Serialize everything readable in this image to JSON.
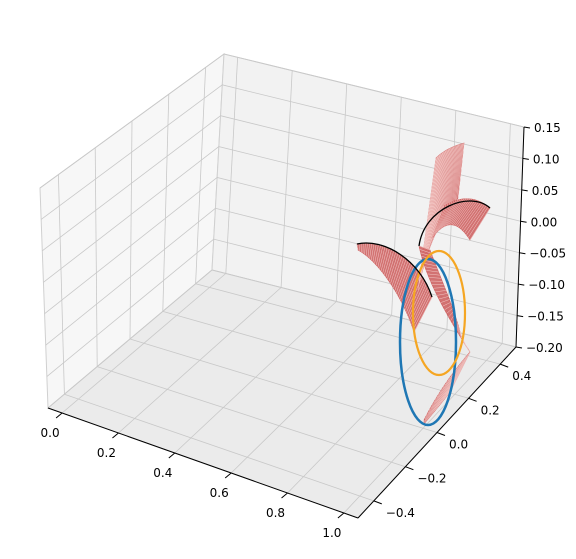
{
  "chart_data": {
    "type": "3d-line-surface",
    "title": "",
    "xlabel": "",
    "ylabel": "",
    "zlabel": "",
    "axes": {
      "x": {
        "ticks": [
          0.0,
          0.2,
          0.4,
          0.6,
          0.8,
          1.0
        ],
        "tick_labels": [
          "0.0",
          "0.2",
          "0.4",
          "0.6",
          "0.8",
          "1.0"
        ],
        "range": [
          -0.05,
          1.05
        ]
      },
      "y": {
        "ticks": [
          -0.4,
          -0.2,
          0.0,
          0.2,
          0.4
        ],
        "tick_labels": [
          "−0.4",
          "−0.2",
          "0.0",
          "0.2",
          "0.4"
        ],
        "range": [
          -0.5,
          0.5
        ]
      },
      "z": {
        "ticks": [
          -0.2,
          -0.15,
          -0.1,
          -0.05,
          0.0,
          0.05,
          0.1,
          0.15
        ],
        "tick_labels": [
          "−0.20",
          "−0.15",
          "−0.10",
          "−0.05",
          "0.00",
          "0.05",
          "0.10",
          "0.15"
        ],
        "range": [
          -0.2,
          0.15
        ]
      }
    },
    "grid": true,
    "series": [
      {
        "kind": "circle",
        "color": "#1f77b4"
      },
      {
        "kind": "circle",
        "color": "#f5a623"
      },
      {
        "kind": "arc",
        "color": "#000000"
      },
      {
        "kind": "surface",
        "color": "#cd5c5c"
      }
    ]
  }
}
